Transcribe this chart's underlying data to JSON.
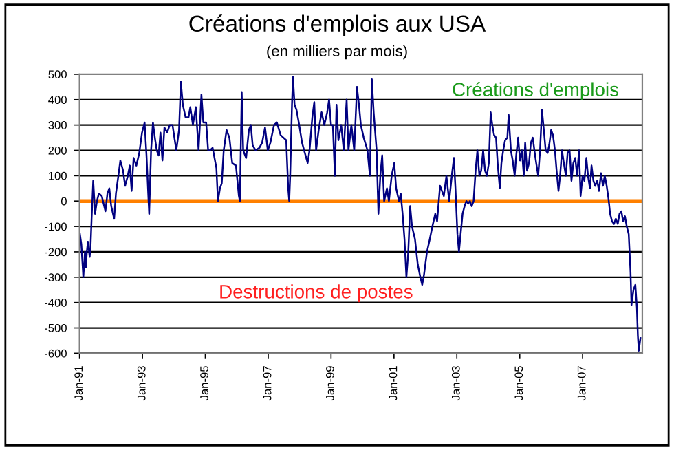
{
  "chart_data": {
    "type": "line",
    "title": "Créations d'emplois aux USA",
    "subtitle": "(en milliers par mois)",
    "x": [
      "1991-01-01",
      "1991-01-22",
      "1991-02-14",
      "1991-03-05",
      "1991-03-16",
      "1991-03-27",
      "1991-04-08",
      "1991-04-29",
      "1991-05-10",
      "1991-05-21",
      "1991-06-09",
      "1991-07-01",
      "1991-07-22",
      "1991-08-14",
      "1991-09-16",
      "1991-10-29",
      "1991-11-21",
      "1991-12-13",
      "1992-01-04",
      "1992-02-07",
      "1992-02-28",
      "1992-03-27",
      "1992-04-19",
      "1992-05-21",
      "1992-06-13",
      "1992-07-15",
      "1992-08-07",
      "1992-08-28",
      "1992-09-20",
      "1992-10-22",
      "1992-11-25",
      "1992-12-27",
      "1993-01-26",
      "1993-02-17",
      "1993-03-09",
      "1993-03-20",
      "1993-04-11",
      "1993-05-03",
      "1993-05-25",
      "1993-06-16",
      "1993-07-08",
      "1993-07-29",
      "1993-08-21",
      "1993-09-13",
      "1993-10-15",
      "1993-11-14",
      "1993-12-16",
      "1994-01-29",
      "1994-03-02",
      "1994-03-23",
      "1994-04-15",
      "1994-05-17",
      "1994-06-20",
      "1994-07-11",
      "1994-08-10",
      "1994-09-13",
      "1994-10-15",
      "1994-11-17",
      "1994-12-09",
      "1995-01-11",
      "1995-02-03",
      "1995-02-25",
      "1995-03-27",
      "1995-05-10",
      "1995-05-28",
      "1995-06-20",
      "1995-07-11",
      "1995-08-03",
      "1995-09-05",
      "1995-10-08",
      "1995-11-10",
      "1995-12-23",
      "1996-01-26",
      "1996-02-07",
      "1996-02-28",
      "1996-03-16",
      "1996-04-19",
      "1996-05-21",
      "1996-06-13",
      "1996-07-04",
      "1996-08-07",
      "1996-09-20",
      "1996-10-22",
      "1996-11-25",
      "1996-12-27",
      "1997-01-26",
      "1997-03-09",
      "1997-04-11",
      "1997-05-25",
      "1997-06-27",
      "1997-07-29",
      "1997-08-21",
      "1997-09-02",
      "1997-09-13",
      "1997-10-04",
      "1997-10-15",
      "1997-11-03",
      "1997-11-25",
      "1997-12-27",
      "1998-01-29",
      "1998-03-02",
      "1998-04-04",
      "1998-04-26",
      "1998-05-28",
      "1998-06-20",
      "1998-07-11",
      "1998-08-10",
      "1998-09-13",
      "1998-10-15",
      "1998-11-17",
      "1998-12-09",
      "1999-01-01",
      "1999-01-22",
      "1999-02-14",
      "1999-03-05",
      "1999-03-27",
      "1999-04-29",
      "1999-05-28",
      "1999-07-01",
      "1999-07-22",
      "1999-08-25",
      "1999-09-27",
      "1999-10-29",
      "1999-11-21",
      "1999-12-13",
      "2000-01-15",
      "2000-02-28",
      "2000-03-27",
      "2000-04-19",
      "2000-05-10",
      "2000-06-13",
      "2000-07-04",
      "2000-07-26",
      "2000-08-17",
      "2000-09-09",
      "2000-10-11",
      "2000-11-03",
      "2000-12-05",
      "2001-01-04",
      "2001-01-26",
      "2001-02-28",
      "2001-03-20",
      "2001-04-11",
      "2001-05-03",
      "2001-05-25",
      "2001-06-16",
      "2001-07-08",
      "2001-07-29",
      "2001-09-02",
      "2001-10-04",
      "2001-11-03",
      "2001-11-25",
      "2001-12-16",
      "2002-01-19",
      "2002-02-21",
      "2002-03-23",
      "2002-04-26",
      "2002-05-17",
      "2002-06-20",
      "2002-08-03",
      "2002-09-02",
      "2002-10-04",
      "2002-11-07",
      "2002-11-28",
      "2002-12-16",
      "2003-01-08",
      "2003-01-26",
      "2003-02-17",
      "2003-03-09",
      "2003-04-01",
      "2003-04-22",
      "2003-05-14",
      "2003-06-02",
      "2003-06-23",
      "2003-07-15",
      "2003-08-07",
      "2003-08-28",
      "2003-09-20",
      "2003-10-11",
      "2003-11-03",
      "2003-11-25",
      "2003-12-16",
      "2004-01-08",
      "2004-01-29",
      "2004-02-17",
      "2004-03-09",
      "2004-04-01",
      "2004-04-19",
      "2004-05-14",
      "2004-06-02",
      "2004-06-23",
      "2004-07-15",
      "2004-08-10",
      "2004-08-25",
      "2004-09-20",
      "2004-10-11",
      "2004-11-03",
      "2004-11-21",
      "2004-12-13",
      "2005-01-04",
      "2005-01-26",
      "2005-02-17",
      "2005-03-05",
      "2005-03-27",
      "2005-04-19",
      "2005-05-10",
      "2005-06-02",
      "2005-06-20",
      "2005-07-11",
      "2005-08-03",
      "2005-08-25",
      "2005-09-16",
      "2005-10-08",
      "2005-10-29",
      "2005-11-21",
      "2005-12-09",
      "2006-01-01",
      "2006-01-22",
      "2006-02-14",
      "2006-03-05",
      "2006-03-27",
      "2006-04-15",
      "2006-05-07",
      "2006-05-28",
      "2006-06-20",
      "2006-07-11",
      "2006-08-03",
      "2006-08-25",
      "2006-09-16",
      "2006-10-08",
      "2006-10-29",
      "2006-11-21",
      "2006-12-09",
      "2007-01-01",
      "2007-01-22",
      "2007-02-14",
      "2007-03-05",
      "2007-03-27",
      "2007-04-15",
      "2007-05-07",
      "2007-05-28",
      "2007-06-20",
      "2007-07-11",
      "2007-08-03",
      "2007-08-25",
      "2007-09-16",
      "2007-10-08",
      "2007-10-29",
      "2007-11-17",
      "2007-12-09",
      "2008-01-01",
      "2008-01-22",
      "2008-02-14",
      "2008-03-05",
      "2008-03-27",
      "2008-04-15",
      "2008-05-07",
      "2008-05-28",
      "2008-06-20",
      "2008-07-11",
      "2008-07-22",
      "2008-08-14",
      "2008-09-05",
      "2008-09-23",
      "2008-10-04",
      "2008-10-15",
      "2008-11-03"
    ],
    "series": [
      {
        "color": "#000080",
        "values": [
          -120,
          -170,
          -300,
          -200,
          -260,
          -200,
          -160,
          -220,
          -170,
          -70,
          80,
          -50,
          0,
          30,
          20,
          -40,
          30,
          50,
          -20,
          -70,
          30,
          100,
          160,
          120,
          60,
          100,
          140,
          40,
          170,
          140,
          190,
          270,
          310,
          180,
          30,
          -50,
          200,
          310,
          250,
          200,
          180,
          270,
          160,
          290,
          270,
          300,
          300,
          200,
          280,
          470,
          380,
          330,
          330,
          370,
          300,
          370,
          200,
          420,
          310,
          310,
          200,
          200,
          210,
          130,
          0,
          50,
          70,
          200,
          280,
          250,
          150,
          140,
          20,
          0,
          430,
          200,
          170,
          280,
          300,
          220,
          200,
          210,
          230,
          290,
          200,
          230,
          300,
          310,
          260,
          250,
          240,
          50,
          0,
          100,
          380,
          490,
          380,
          360,
          300,
          230,
          190,
          150,
          200,
          330,
          390,
          200,
          280,
          350,
          300,
          350,
          400,
          300,
          300,
          100,
          380,
          240,
          300,
          200,
          400,
          200,
          300,
          200,
          450,
          380,
          300,
          250,
          200,
          100,
          480,
          350,
          200,
          -50,
          100,
          180,
          0,
          50,
          0,
          100,
          150,
          50,
          0,
          30,
          -50,
          -150,
          -300,
          -200,
          -20,
          -100,
          -150,
          -250,
          -300,
          -330,
          -290,
          -200,
          -150,
          -100,
          -50,
          -80,
          60,
          20,
          100,
          0,
          110,
          170,
          50,
          -130,
          -200,
          -120,
          -50,
          -20,
          0,
          -10,
          0,
          -20,
          0,
          120,
          200,
          100,
          120,
          200,
          120,
          100,
          150,
          350,
          300,
          260,
          250,
          150,
          50,
          150,
          200,
          240,
          250,
          340,
          200,
          160,
          100,
          180,
          250,
          160,
          200,
          100,
          230,
          120,
          150,
          230,
          250,
          200,
          150,
          100,
          200,
          360,
          280,
          200,
          190,
          220,
          280,
          260,
          200,
          120,
          40,
          100,
          200,
          150,
          100,
          190,
          200,
          80,
          150,
          170,
          100,
          200,
          20,
          100,
          80,
          170,
          100,
          50,
          140,
          80,
          60,
          80,
          40,
          110,
          60,
          100,
          60,
          10,
          -50,
          -80,
          -90,
          -70,
          -90,
          -50,
          -40,
          -80,
          -60,
          -100,
          -130,
          -280,
          -410,
          -350,
          -330,
          -420,
          -530,
          -590,
          -540
        ]
      }
    ],
    "xlim": [
      "1991-01-01",
      "2008-11-25"
    ],
    "xticks": [
      {
        "value": "1991-01",
        "label": "Jan-91"
      },
      {
        "value": "1993-01",
        "label": "Jan-93"
      },
      {
        "value": "1995-01",
        "label": "Jan-95"
      },
      {
        "value": "1997-01",
        "label": "Jan-97"
      },
      {
        "value": "1999-01",
        "label": "Jan-99"
      },
      {
        "value": "2001-01",
        "label": "Jan-01"
      },
      {
        "value": "2003-01",
        "label": "Jan-03"
      },
      {
        "value": "2005-01",
        "label": "Jan-05"
      },
      {
        "value": "2007-01",
        "label": "Jan-07"
      }
    ],
    "ylim": [
      -600,
      500
    ],
    "yticks": [
      -600,
      -500,
      -400,
      -300,
      -200,
      -100,
      0,
      100,
      200,
      300,
      400,
      500
    ],
    "grid": "y",
    "ref_lines": [
      {
        "axis": "y",
        "value": 0,
        "color": "#ff8000"
      }
    ],
    "annotations": [
      "Créations d'emplois",
      "Destructions de postes"
    ]
  }
}
